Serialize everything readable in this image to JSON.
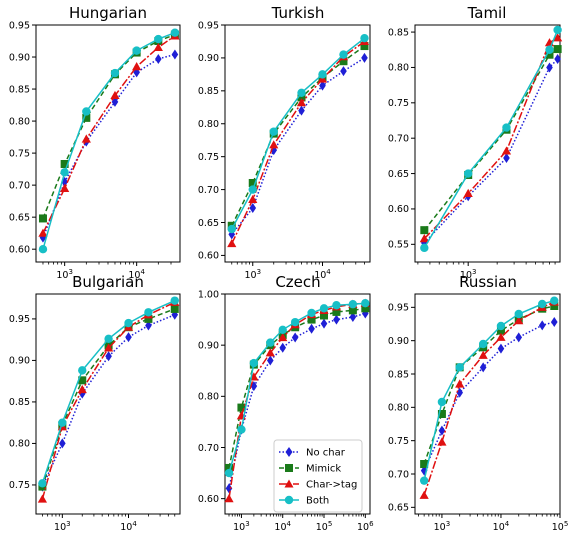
{
  "series_styles": [
    {
      "name": "No char",
      "color": "#1f1fd6",
      "marker": "diamond",
      "dash": "1.5,2"
    },
    {
      "name": "Mimick",
      "color": "#1a7a1a",
      "marker": "square",
      "dash": "5,3"
    },
    {
      "name": "Char->tag",
      "color": "#e01010",
      "marker": "triangle",
      "dash": "8,2,2,2"
    },
    {
      "name": "Both",
      "color": "#17bfc6",
      "marker": "circle",
      "dash": ""
    }
  ],
  "chart_data": [
    {
      "type": "line",
      "title": "Hungarian",
      "xscale": "log",
      "xlim": [
        400,
        40000
      ],
      "ylim": [
        0.58,
        0.95
      ],
      "xticks": [
        {
          "v": 1000,
          "l": "10^3"
        },
        {
          "v": 10000,
          "l": "10^4"
        }
      ],
      "yticks": [
        0.6,
        0.65,
        0.7,
        0.75,
        0.8,
        0.85,
        0.9,
        0.95
      ],
      "x": [
        500,
        1000,
        2000,
        5000,
        10000,
        20000,
        34000
      ],
      "series": [
        {
          "name": "No char",
          "values": [
            0.618,
            0.705,
            0.768,
            0.83,
            0.876,
            0.897,
            0.904
          ]
        },
        {
          "name": "Mimick",
          "values": [
            0.648,
            0.733,
            0.805,
            0.873,
            0.907,
            0.925,
            0.935
          ]
        },
        {
          "name": "Char->tag",
          "values": [
            0.625,
            0.695,
            0.772,
            0.84,
            0.885,
            0.915,
            0.933
          ]
        },
        {
          "name": "Both",
          "values": [
            0.6,
            0.72,
            0.815,
            0.875,
            0.91,
            0.928,
            0.938
          ]
        }
      ]
    },
    {
      "type": "line",
      "title": "Turkish",
      "xscale": "log",
      "xlim": [
        400,
        48000
      ],
      "ylim": [
        0.59,
        0.95
      ],
      "xticks": [
        {
          "v": 1000,
          "l": "10^3"
        },
        {
          "v": 10000,
          "l": "10^4"
        }
      ],
      "yticks": [
        0.6,
        0.65,
        0.7,
        0.75,
        0.8,
        0.85,
        0.9,
        0.95
      ],
      "x": [
        500,
        1000,
        2000,
        5000,
        10000,
        20000,
        40000
      ],
      "series": [
        {
          "name": "No char",
          "values": [
            0.632,
            0.672,
            0.76,
            0.82,
            0.858,
            0.88,
            0.9
          ]
        },
        {
          "name": "Mimick",
          "values": [
            0.645,
            0.71,
            0.785,
            0.84,
            0.87,
            0.895,
            0.918
          ]
        },
        {
          "name": "Char->tag",
          "values": [
            0.618,
            0.685,
            0.768,
            0.832,
            0.868,
            0.902,
            0.925
          ]
        },
        {
          "name": "Both",
          "values": [
            0.64,
            0.7,
            0.788,
            0.847,
            0.875,
            0.905,
            0.93
          ]
        }
      ]
    },
    {
      "type": "line",
      "title": "Tamil",
      "xscale": "log",
      "xlim": [
        280,
        9000
      ],
      "ylim": [
        0.525,
        0.86
      ],
      "xticks": [
        {
          "v": 1000,
          "l": "10^3"
        }
      ],
      "yticks": [
        0.55,
        0.6,
        0.65,
        0.7,
        0.75,
        0.8,
        0.85
      ],
      "x": [
        350,
        1000,
        2500,
        7000,
        8500
      ],
      "series": [
        {
          "name": "No char",
          "values": [
            0.552,
            0.618,
            0.672,
            0.8,
            0.812
          ]
        },
        {
          "name": "Mimick",
          "values": [
            0.57,
            0.648,
            0.712,
            0.818,
            0.826
          ]
        },
        {
          "name": "Char->tag",
          "values": [
            0.558,
            0.622,
            0.682,
            0.835,
            0.842
          ]
        },
        {
          "name": "Both",
          "values": [
            0.545,
            0.65,
            0.715,
            0.825,
            0.853
          ]
        }
      ]
    },
    {
      "type": "line",
      "title": "Bulgarian",
      "xscale": "log",
      "xlim": [
        400,
        60000
      ],
      "ylim": [
        0.715,
        0.98
      ],
      "xticks": [
        {
          "v": 1000,
          "l": "10^3"
        },
        {
          "v": 10000,
          "l": "10^4"
        }
      ],
      "yticks": [
        0.75,
        0.8,
        0.85,
        0.9,
        0.95
      ],
      "x": [
        500,
        1000,
        2000,
        5000,
        10000,
        20000,
        50000
      ],
      "series": [
        {
          "name": "No char",
          "values": [
            0.748,
            0.8,
            0.86,
            0.905,
            0.928,
            0.942,
            0.955
          ]
        },
        {
          "name": "Mimick",
          "values": [
            0.748,
            0.822,
            0.876,
            0.918,
            0.94,
            0.95,
            0.962
          ]
        },
        {
          "name": "Char->tag",
          "values": [
            0.733,
            0.82,
            0.865,
            0.915,
            0.94,
            0.955,
            0.97
          ]
        },
        {
          "name": "Both",
          "values": [
            0.752,
            0.825,
            0.888,
            0.926,
            0.945,
            0.958,
            0.972
          ]
        }
      ]
    },
    {
      "type": "line",
      "title": "Czech",
      "xscale": "log",
      "xlim": [
        400,
        1300000
      ],
      "ylim": [
        0.57,
        1.0
      ],
      "xticks": [
        {
          "v": 1000,
          "l": "10^3"
        },
        {
          "v": 10000,
          "l": "10^4"
        },
        {
          "v": 100000,
          "l": "10^5"
        },
        {
          "v": 1000000,
          "l": "10^6"
        }
      ],
      "yticks": [
        0.6,
        0.7,
        0.8,
        0.9,
        1.0
      ],
      "x": [
        500,
        1000,
        2000,
        5000,
        10000,
        20000,
        50000,
        100000,
        200000,
        500000,
        1000000
      ],
      "series": [
        {
          "name": "No char",
          "values": [
            0.62,
            0.735,
            0.82,
            0.87,
            0.895,
            0.915,
            0.932,
            0.942,
            0.95,
            0.955,
            0.962
          ]
        },
        {
          "name": "Mimick",
          "values": [
            0.66,
            0.778,
            0.862,
            0.9,
            0.92,
            0.935,
            0.95,
            0.958,
            0.965,
            0.968,
            0.972
          ]
        },
        {
          "name": "Char->tag",
          "values": [
            0.6,
            0.762,
            0.838,
            0.885,
            0.915,
            0.94,
            0.96,
            0.968,
            0.975,
            0.98,
            0.982
          ]
        },
        {
          "name": "Both",
          "values": [
            0.65,
            0.735,
            0.865,
            0.905,
            0.93,
            0.945,
            0.963,
            0.972,
            0.978,
            0.98,
            0.982
          ]
        }
      ]
    },
    {
      "type": "line",
      "title": "Russian",
      "xscale": "log",
      "xlim": [
        350,
        100000
      ],
      "ylim": [
        0.64,
        0.97
      ],
      "xticks": [
        {
          "v": 1000,
          "l": "10^3"
        },
        {
          "v": 10000,
          "l": "10^4"
        },
        {
          "v": 100000,
          "l": "10^5"
        }
      ],
      "yticks": [
        0.65,
        0.7,
        0.75,
        0.8,
        0.85,
        0.9,
        0.95
      ],
      "x": [
        500,
        1000,
        2000,
        5000,
        10000,
        20000,
        50000,
        80000
      ],
      "series": [
        {
          "name": "No char",
          "values": [
            0.705,
            0.765,
            0.822,
            0.86,
            0.888,
            0.905,
            0.923,
            0.928
          ]
        },
        {
          "name": "Mimick",
          "values": [
            0.715,
            0.79,
            0.86,
            0.89,
            0.915,
            0.932,
            0.948,
            0.952
          ]
        },
        {
          "name": "Char->tag",
          "values": [
            0.668,
            0.748,
            0.835,
            0.878,
            0.905,
            0.93,
            0.95,
            0.958
          ]
        },
        {
          "name": "Both",
          "values": [
            0.69,
            0.808,
            0.86,
            0.895,
            0.922,
            0.94,
            0.955,
            0.96
          ]
        }
      ]
    }
  ]
}
